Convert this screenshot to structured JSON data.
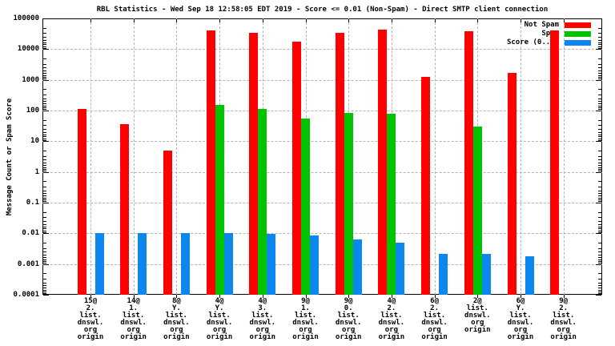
{
  "window": {
    "background": "#ffffff",
    "foreground": "#000000"
  },
  "chart_data": {
    "type": "bar",
    "title": "RBL Statistics - Wed Sep 18 12:58:05 EDT 2019 - Score <= 0.01 (Non-Spam) - Direct SMTP client connection",
    "ylabel": "Message Count or Spam Score",
    "xlabel": "",
    "y_scale": "log10",
    "ylim": [
      0.0001,
      100000
    ],
    "ytick_labels": [
      "100000",
      "10000",
      "1000",
      "100",
      "10",
      "1",
      "0.1",
      "0.01",
      "0.001",
      "0.0001"
    ],
    "grid": {
      "horizontal": "dashed at each decade",
      "vertical": "dashed at each category",
      "color": "#b4b4b4"
    },
    "legend_position": "top-right-inside",
    "categories": [
      [
        "15@",
        "2.",
        "list.",
        "dnswl.",
        "org",
        "origin"
      ],
      [
        "14@",
        "1.",
        "list.",
        "dnswl.",
        "org",
        "origin"
      ],
      [
        "8@",
        "Y.",
        "list.",
        "dnswl.",
        "org",
        "origin"
      ],
      [
        "4@",
        "Y.",
        "list.",
        "dnswl.",
        "org",
        "origin"
      ],
      [
        "4@",
        "3.",
        "list.",
        "dnswl.",
        "org",
        "origin"
      ],
      [
        "9@",
        "1.",
        "list.",
        "dnswl.",
        "org",
        "origin"
      ],
      [
        "9@",
        "0.",
        "list.",
        "dnswl.",
        "org",
        "origin"
      ],
      [
        "4@",
        "2.",
        "list.",
        "dnswl.",
        "org",
        "origin"
      ],
      [
        "6@",
        "2.",
        "list.",
        "dnswl.",
        "org",
        "origin"
      ],
      [
        "2@",
        "list.",
        "dnswl.",
        "org",
        "origin"
      ],
      [
        "6@",
        "Y.",
        "list.",
        "dnswl.",
        "org",
        "origin"
      ],
      [
        "9@",
        "2.",
        "list.",
        "dnswl.",
        "org",
        "origin"
      ]
    ],
    "series": [
      {
        "name": "Not Spam",
        "color": "#ff0000",
        "values": [
          110,
          35,
          5,
          40000,
          33000,
          18000,
          34000,
          44000,
          1250,
          38000,
          1700,
          40000
        ]
      },
      {
        "name": "Spam",
        "color": "#00c400",
        "values": [
          null,
          null,
          null,
          150,
          110,
          55,
          85,
          80,
          null,
          30,
          null,
          null
        ]
      },
      {
        "name": "Score (0..1)",
        "color": "#0d87f0",
        "values": [
          0.01,
          0.01,
          0.01,
          0.01,
          0.0095,
          0.0085,
          0.0065,
          0.005,
          0.0022,
          0.0022,
          0.0018,
          null
        ]
      }
    ]
  }
}
